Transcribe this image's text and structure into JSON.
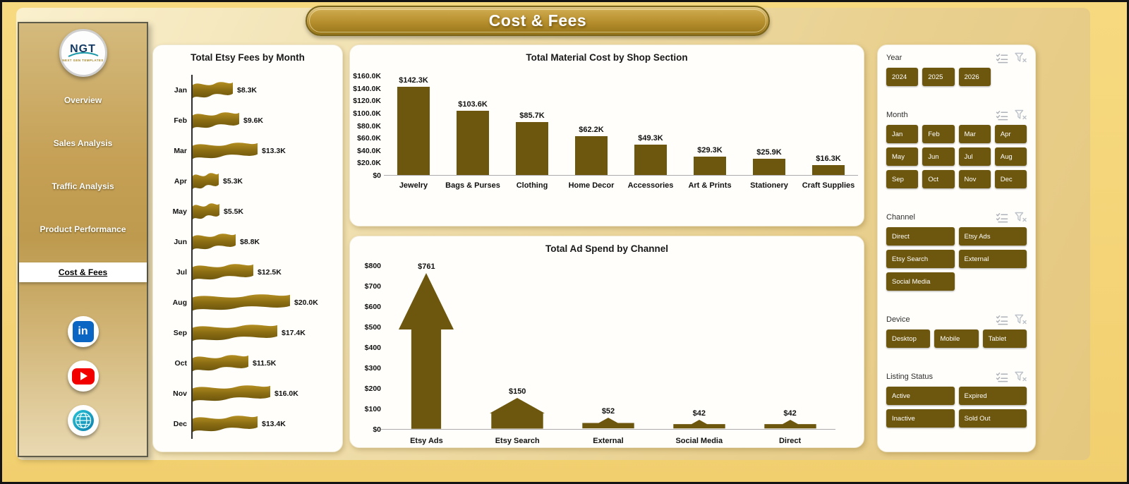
{
  "app": {
    "title": "Cost & Fees"
  },
  "sidebar": {
    "logo": {
      "text": "NGT",
      "subtext": "NEXT GEN TEMPLATES"
    },
    "items": [
      {
        "label": "Overview",
        "active": false
      },
      {
        "label": "Sales Analysis",
        "active": false
      },
      {
        "label": "Traffic Analysis",
        "active": false
      },
      {
        "label": "Product Performance",
        "active": false
      },
      {
        "label": "Cost & Fees",
        "active": true
      }
    ],
    "social": [
      {
        "name": "linkedin",
        "glyph": "in"
      },
      {
        "name": "youtube",
        "glyph": ""
      },
      {
        "name": "website",
        "glyph": ""
      }
    ]
  },
  "chart_data": [
    {
      "type": "bar",
      "orientation": "horizontal",
      "bar_shape": "flag",
      "title": "Total Etsy Fees by Month",
      "categories": [
        "Jan",
        "Feb",
        "Mar",
        "Apr",
        "May",
        "Jun",
        "Jul",
        "Aug",
        "Sep",
        "Oct",
        "Nov",
        "Dec"
      ],
      "values": [
        8300,
        9600,
        13300,
        5300,
        5500,
        8800,
        12500,
        20000,
        17400,
        11500,
        16000,
        13400
      ],
      "labels": [
        "$8.3K",
        "$9.6K",
        "$13.3K",
        "$5.3K",
        "$5.5K",
        "$8.8K",
        "$12.5K",
        "$20.0K",
        "$17.4K",
        "$11.5K",
        "$16.0K",
        "$13.4K"
      ],
      "xlim": [
        0,
        20000
      ],
      "color": "#8a6c12"
    },
    {
      "type": "bar",
      "orientation": "vertical",
      "bar_shape": "rect",
      "title": "Total Material Cost by Shop Section",
      "categories": [
        "Jewelry",
        "Bags & Purses",
        "Clothing",
        "Home Decor",
        "Accessories",
        "Art & Prints",
        "Stationery",
        "Craft Supplies"
      ],
      "values": [
        142300,
        103600,
        85700,
        62200,
        49300,
        29300,
        25900,
        16300
      ],
      "labels": [
        "$142.3K",
        "$103.6K",
        "$85.7K",
        "$62.2K",
        "$49.3K",
        "$29.3K",
        "$25.9K",
        "$16.3K"
      ],
      "ylim": [
        0,
        160000
      ],
      "ytick_labels": [
        "$160.0K",
        "$140.0K",
        "$120.0K",
        "$100.0K",
        "$80.0K",
        "$60.0K",
        "$40.0K",
        "$20.0K",
        "$0"
      ],
      "grid": false,
      "color": "#6d570e"
    },
    {
      "type": "bar",
      "orientation": "vertical",
      "bar_shape": "arrow",
      "title": "Total Ad Spend by Channel",
      "categories": [
        "Etsy Ads",
        "Etsy Search",
        "External",
        "Social Media",
        "Direct"
      ],
      "values": [
        761,
        150,
        52,
        42,
        42
      ],
      "labels": [
        "$761",
        "$150",
        "$52",
        "$42",
        "$42"
      ],
      "ylim": [
        0,
        800
      ],
      "ytick_labels": [
        "$800",
        "$700",
        "$600",
        "$500",
        "$400",
        "$300",
        "$200",
        "$100",
        "$0"
      ],
      "grid": false,
      "color": "#6d570e"
    }
  ],
  "filters": {
    "sections": [
      {
        "label": "Year",
        "columns": 4,
        "options": [
          "2024",
          "2025",
          "2026"
        ]
      },
      {
        "label": "Month",
        "columns": 4,
        "options": [
          "Jan",
          "Feb",
          "Mar",
          "Apr",
          "May",
          "Jun",
          "Jul",
          "Aug",
          "Sep",
          "Oct",
          "Nov",
          "Dec"
        ]
      },
      {
        "label": "Channel",
        "columns": 2,
        "options": [
          "Direct",
          "Etsy Ads",
          "Etsy Search",
          "External",
          "Social Media"
        ]
      },
      {
        "label": "Device",
        "columns": 3,
        "options": [
          "Desktop",
          "Mobile",
          "Tablet"
        ]
      },
      {
        "label": "Listing Status",
        "columns": 2,
        "options": [
          "Active",
          "Expired",
          "Inactive",
          "Sold Out"
        ]
      }
    ],
    "button_color": "#6d570e"
  },
  "colors": {
    "accent": "#6d570e",
    "page_bg": "#f5d67b",
    "card_bg": "#fffefa"
  }
}
